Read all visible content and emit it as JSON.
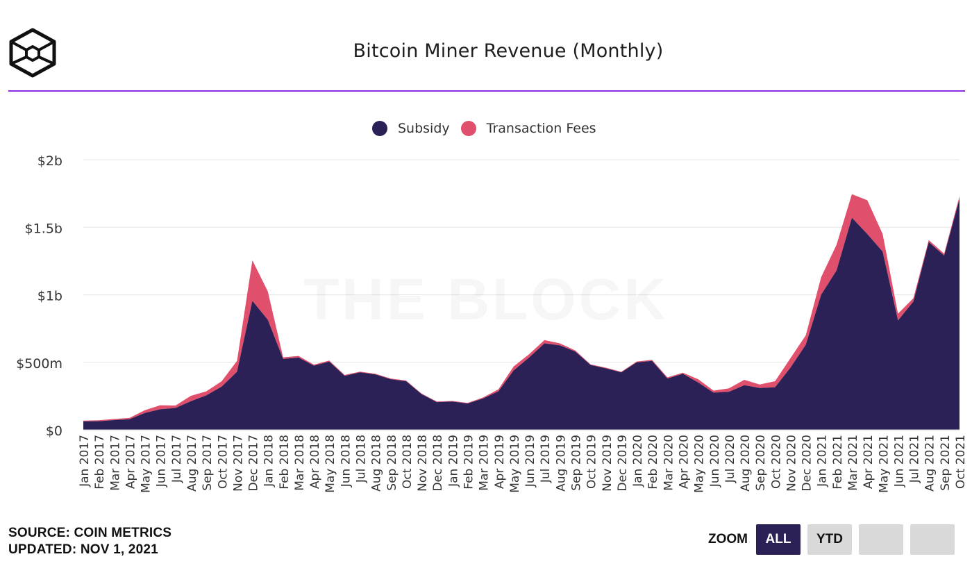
{
  "header": {
    "title": "Bitcoin Miner Revenue (Monthly)",
    "logo": "the-block-cube-logo"
  },
  "watermark": "THE BLOCK",
  "colors": {
    "subsidy": "#2c2156",
    "fees": "#e0506c",
    "accent_rule": "#8a2be2",
    "grid": "#e6e6e6"
  },
  "legend": [
    {
      "label": "Subsidy",
      "color": "#2c2156"
    },
    {
      "label": "Transaction Fees",
      "color": "#e0506c"
    }
  ],
  "footer": {
    "source": "SOURCE: COIN METRICS",
    "updated": "UPDATED: NOV 1, 2021"
  },
  "zoom": {
    "label": "ZOOM",
    "buttons": [
      {
        "label": "ALL",
        "active": true
      },
      {
        "label": "YTD",
        "active": false
      },
      {
        "label": "",
        "active": false
      },
      {
        "label": "",
        "active": false
      }
    ]
  },
  "chart_data": {
    "type": "area",
    "stacked": true,
    "title": "Bitcoin Miner Revenue (Monthly)",
    "xlabel": "",
    "ylabel": "",
    "ylim": [
      0,
      2000
    ],
    "unit": "$ millions",
    "yticks": [
      {
        "value": 0,
        "label": "$0"
      },
      {
        "value": 500,
        "label": "$500m"
      },
      {
        "value": 1000,
        "label": "$1b"
      },
      {
        "value": 1500,
        "label": "$1.5b"
      },
      {
        "value": 2000,
        "label": "$2b"
      }
    ],
    "legend_position": "top-center",
    "grid": true,
    "categories": [
      "Jan 2017",
      "Feb 2017",
      "Mar 2017",
      "Apr 2017",
      "May 2017",
      "Jun 2017",
      "Jul 2017",
      "Aug 2017",
      "Sep 2017",
      "Oct 2017",
      "Nov 2017",
      "Dec 2017",
      "Jan 2018",
      "Feb 2018",
      "Mar 2018",
      "Apr 2018",
      "May 2018",
      "Jun 2018",
      "Jul 2018",
      "Aug 2018",
      "Sep 2018",
      "Oct 2018",
      "Nov 2018",
      "Dec 2018",
      "Jan 2019",
      "Feb 2019",
      "Mar 2019",
      "Apr 2019",
      "May 2019",
      "Jun 2019",
      "Jul 2019",
      "Aug 2019",
      "Sep 2019",
      "Oct 2019",
      "Nov 2019",
      "Dec 2019",
      "Jan 2020",
      "Feb 2020",
      "Mar 2020",
      "Apr 2020",
      "May 2020",
      "Jun 2020",
      "Jul 2020",
      "Aug 2020",
      "Sep 2020",
      "Oct 2020",
      "Nov 2020",
      "Dec 2020",
      "Jan 2021",
      "Feb 2021",
      "Mar 2021",
      "Apr 2021",
      "May 2021",
      "Jun 2021",
      "Jul 2021",
      "Aug 2021",
      "Sep 2021",
      "Oct 2021"
    ],
    "series": [
      {
        "name": "Subsidy",
        "values": [
          62,
          64,
          72,
          78,
          125,
          152,
          162,
          212,
          255,
          320,
          430,
          955,
          815,
          525,
          535,
          475,
          505,
          400,
          425,
          410,
          375,
          360,
          265,
          205,
          210,
          195,
          232,
          285,
          440,
          535,
          640,
          625,
          580,
          480,
          455,
          425,
          500,
          510,
          380,
          415,
          350,
          275,
          282,
          330,
          310,
          315,
          460,
          630,
          1000,
          1180,
          1570,
          1450,
          1320,
          810,
          950,
          1390,
          1290,
          1710
        ]
      },
      {
        "name": "Transaction Fees",
        "values": [
          6,
          7,
          8,
          10,
          20,
          30,
          18,
          40,
          30,
          40,
          80,
          300,
          210,
          12,
          12,
          8,
          8,
          6,
          6,
          5,
          5,
          5,
          4,
          4,
          4,
          4,
          7,
          14,
          30,
          25,
          25,
          15,
          8,
          5,
          5,
          5,
          6,
          8,
          8,
          8,
          25,
          15,
          25,
          40,
          25,
          45,
          70,
          70,
          130,
          190,
          175,
          250,
          130,
          50,
          25,
          15,
          15,
          20
        ]
      }
    ]
  }
}
